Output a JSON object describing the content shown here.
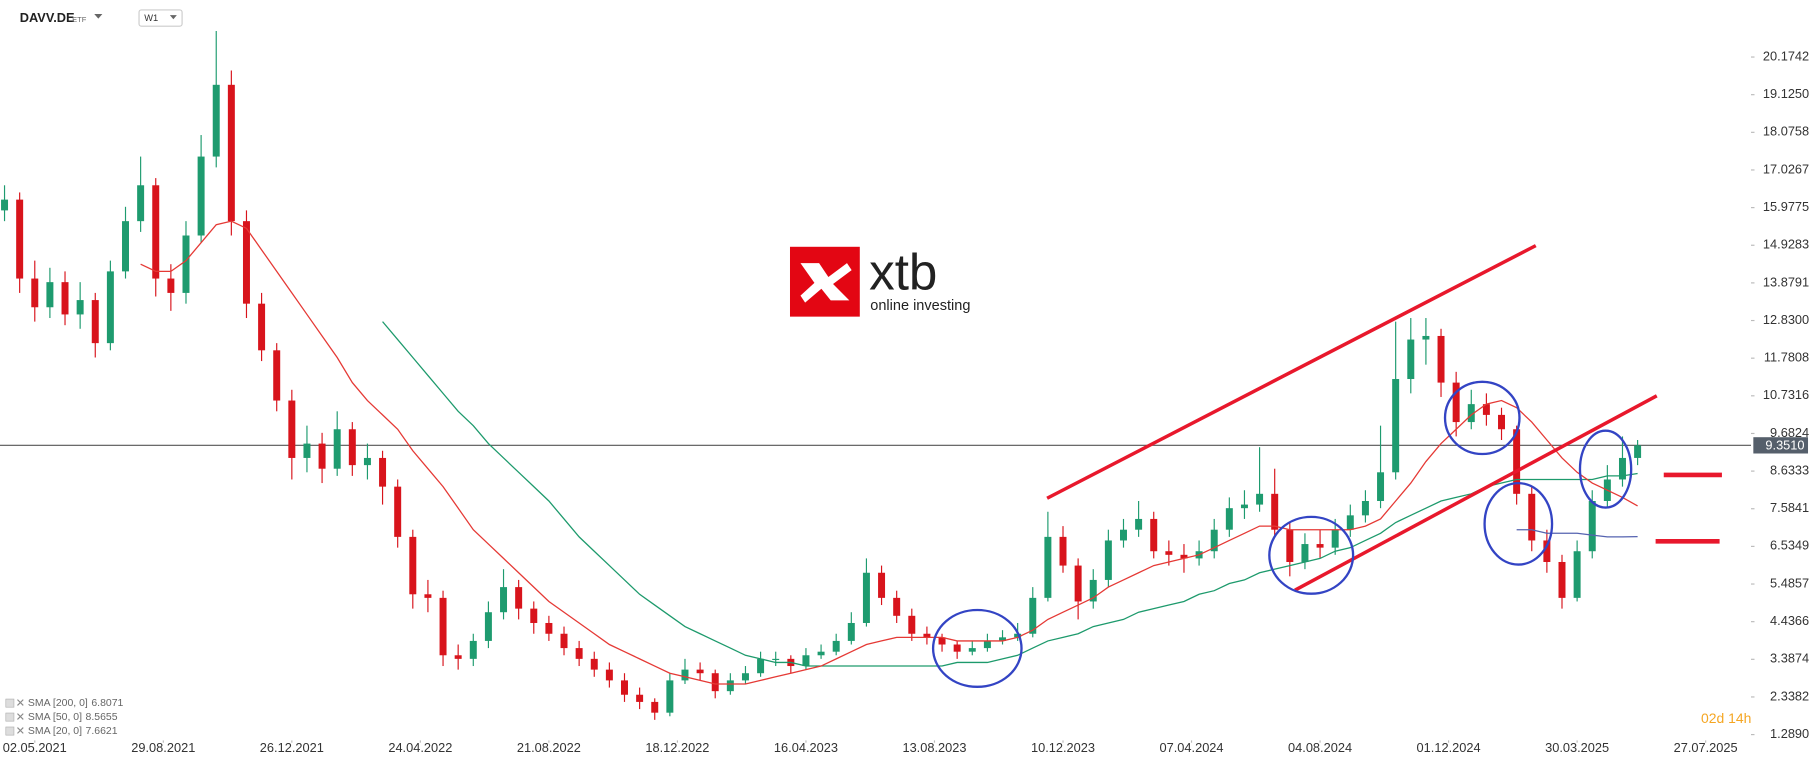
{
  "header": {
    "symbol": "DAVV.DE",
    "asset_type": "ETF",
    "timeframe": "W1"
  },
  "watermark": {
    "brand": "xtb",
    "tagline": "online investing"
  },
  "countdown": "02d 14h",
  "chart_data": {
    "type": "candlestick",
    "up_color": "#1e9b6f",
    "down_color": "#d8141c",
    "open": [
      15.9,
      16.2,
      14.0,
      13.2,
      13.9,
      13.0,
      13.4,
      12.2,
      14.2,
      15.6,
      16.6,
      14.0,
      13.6,
      15.2,
      17.4,
      19.4,
      15.6,
      13.3,
      12.0,
      10.6,
      9.0,
      9.4,
      8.7,
      9.8,
      8.8,
      9.0,
      8.2,
      6.8,
      5.2,
      5.1,
      3.5,
      3.4,
      3.9,
      4.7,
      5.4,
      4.8,
      4.4,
      4.1,
      3.7,
      3.4,
      3.1,
      2.8,
      2.4,
      2.2,
      1.9,
      2.8,
      3.1,
      3.0,
      2.5,
      2.8,
      3.0,
      3.4,
      3.4,
      3.2,
      3.5,
      3.6,
      3.9,
      4.4,
      5.8,
      5.1,
      4.6,
      4.1,
      4.0,
      3.8,
      3.6,
      3.7,
      3.9,
      4.0,
      4.1,
      5.1,
      6.8,
      6.0,
      5.0,
      5.6,
      6.7,
      7.0,
      7.3,
      6.4,
      6.3,
      6.2,
      6.4,
      7.0,
      7.6,
      7.7,
      8.0,
      7.0,
      6.1,
      6.6,
      6.5,
      7.0,
      7.4,
      7.8,
      8.6,
      11.2,
      12.3,
      12.4,
      11.1,
      10.0,
      10.5,
      10.2,
      9.8,
      8.0,
      6.7,
      6.1,
      5.1,
      6.4,
      7.8,
      8.4,
      9.0
    ],
    "high": [
      16.6,
      16.4,
      14.5,
      14.3,
      14.2,
      13.9,
      13.6,
      14.5,
      16.0,
      17.4,
      16.8,
      14.4,
      15.6,
      18.0,
      20.9,
      19.8,
      15.9,
      13.6,
      12.2,
      10.9,
      9.9,
      9.7,
      10.3,
      10.0,
      9.4,
      9.2,
      8.4,
      7.0,
      5.6,
      5.3,
      3.8,
      4.1,
      5.0,
      5.9,
      5.6,
      5.0,
      4.6,
      4.3,
      3.9,
      3.6,
      3.3,
      3.0,
      2.6,
      2.3,
      3.0,
      3.4,
      3.3,
      3.1,
      3.0,
      3.2,
      3.6,
      3.6,
      3.5,
      3.7,
      3.8,
      4.1,
      4.7,
      6.2,
      6.0,
      5.3,
      4.8,
      4.3,
      4.1,
      3.9,
      3.9,
      4.1,
      4.2,
      4.4,
      5.4,
      7.5,
      7.1,
      6.2,
      5.9,
      7.0,
      7.3,
      7.8,
      7.5,
      6.7,
      6.6,
      6.7,
      7.3,
      7.9,
      8.1,
      9.3,
      8.7,
      7.2,
      6.9,
      7.0,
      7.3,
      7.7,
      8.1,
      9.9,
      12.8,
      12.9,
      12.9,
      12.6,
      11.4,
      10.9,
      10.8,
      10.4,
      9.9,
      8.2,
      7.0,
      6.3,
      6.7,
      8.1,
      8.8,
      9.6,
      9.5
    ],
    "low": [
      15.6,
      13.6,
      12.8,
      12.9,
      12.7,
      12.6,
      11.8,
      12.0,
      14.0,
      15.3,
      13.5,
      13.1,
      13.3,
      15.0,
      17.1,
      15.2,
      12.9,
      11.7,
      10.3,
      8.4,
      8.6,
      8.3,
      8.5,
      8.5,
      8.4,
      7.7,
      6.5,
      4.8,
      4.7,
      3.2,
      3.1,
      3.2,
      3.7,
      4.5,
      4.5,
      4.1,
      3.9,
      3.5,
      3.2,
      2.9,
      2.6,
      2.2,
      2.0,
      1.7,
      1.8,
      2.7,
      2.8,
      2.3,
      2.4,
      2.7,
      2.9,
      3.2,
      3.0,
      3.1,
      3.4,
      3.5,
      3.8,
      4.3,
      4.9,
      4.4,
      3.9,
      3.8,
      3.6,
      3.4,
      3.5,
      3.6,
      3.8,
      3.9,
      4.0,
      5.0,
      5.8,
      4.5,
      4.8,
      5.4,
      6.5,
      6.8,
      6.2,
      6.0,
      5.8,
      6.0,
      6.2,
      6.8,
      7.3,
      7.5,
      6.8,
      5.7,
      5.9,
      6.2,
      6.3,
      6.8,
      7.2,
      7.6,
      8.4,
      10.8,
      11.6,
      10.7,
      9.6,
      9.8,
      9.9,
      9.5,
      7.7,
      6.4,
      5.8,
      4.8,
      5.0,
      6.2,
      7.6,
      8.2,
      8.8
    ],
    "close": [
      16.2,
      14.0,
      13.2,
      13.9,
      13.0,
      13.4,
      12.2,
      14.2,
      15.6,
      16.6,
      14.0,
      13.6,
      15.2,
      17.4,
      19.4,
      15.6,
      13.3,
      12.0,
      10.6,
      9.0,
      9.4,
      8.7,
      9.8,
      8.8,
      9.0,
      8.2,
      6.8,
      5.2,
      5.1,
      3.5,
      3.4,
      3.9,
      4.7,
      5.4,
      4.8,
      4.4,
      4.1,
      3.7,
      3.4,
      3.1,
      2.8,
      2.4,
      2.2,
      1.9,
      2.8,
      3.1,
      3.0,
      2.5,
      2.8,
      3.0,
      3.4,
      3.4,
      3.2,
      3.5,
      3.6,
      3.9,
      4.4,
      5.8,
      5.1,
      4.6,
      4.1,
      4.0,
      3.8,
      3.6,
      3.7,
      3.9,
      4.0,
      4.1,
      5.1,
      6.8,
      6.0,
      5.0,
      5.6,
      6.7,
      7.0,
      7.3,
      6.4,
      6.3,
      6.2,
      6.4,
      7.0,
      7.6,
      7.7,
      8.0,
      7.0,
      6.1,
      6.6,
      6.5,
      7.0,
      7.4,
      7.8,
      8.6,
      11.2,
      12.3,
      12.4,
      11.1,
      10.0,
      10.5,
      10.2,
      9.8,
      8.0,
      6.7,
      6.1,
      5.1,
      6.4,
      7.8,
      8.4,
      9.0,
      9.351
    ],
    "series": [
      {
        "name": "SMA [200, 0]",
        "color": "#5563b0",
        "values": [
          null,
          null,
          null,
          null,
          null,
          null,
          null,
          null,
          null,
          null,
          null,
          null,
          null,
          null,
          null,
          null,
          null,
          null,
          null,
          null,
          null,
          null,
          null,
          null,
          null,
          null,
          null,
          null,
          null,
          null,
          null,
          null,
          null,
          null,
          null,
          null,
          null,
          null,
          null,
          null,
          null,
          null,
          null,
          null,
          null,
          null,
          null,
          null,
          null,
          null,
          null,
          null,
          null,
          null,
          null,
          null,
          null,
          null,
          null,
          null,
          null,
          null,
          null,
          null,
          null,
          null,
          null,
          null,
          null,
          null,
          null,
          null,
          null,
          null,
          null,
          null,
          null,
          null,
          null,
          null,
          null,
          null,
          null,
          null,
          null,
          null,
          null,
          null,
          null,
          null,
          null,
          null,
          null,
          null,
          null,
          null,
          null,
          null,
          null,
          null,
          7.0,
          7.0,
          6.9,
          6.9,
          6.9,
          6.85,
          6.8,
          6.8,
          6.8071
        ]
      },
      {
        "name": "SMA [50, 0]",
        "color": "#1d9a6c",
        "values": [
          null,
          null,
          null,
          null,
          null,
          null,
          null,
          null,
          null,
          null,
          null,
          null,
          null,
          null,
          null,
          null,
          null,
          null,
          null,
          null,
          null,
          null,
          null,
          null,
          null,
          12.8,
          12.3,
          11.8,
          11.3,
          10.8,
          10.3,
          9.9,
          9.4,
          9.0,
          8.6,
          8.2,
          7.8,
          7.3,
          6.8,
          6.4,
          6.0,
          5.6,
          5.2,
          4.9,
          4.6,
          4.3,
          4.1,
          3.9,
          3.7,
          3.5,
          3.4,
          3.3,
          3.3,
          3.2,
          3.2,
          3.2,
          3.2,
          3.2,
          3.2,
          3.2,
          3.2,
          3.2,
          3.2,
          3.3,
          3.3,
          3.3,
          3.4,
          3.5,
          3.7,
          3.9,
          4.0,
          4.1,
          4.3,
          4.4,
          4.5,
          4.7,
          4.8,
          4.9,
          5.0,
          5.2,
          5.3,
          5.5,
          5.6,
          5.8,
          5.9,
          6.0,
          6.1,
          6.2,
          6.4,
          6.5,
          6.7,
          6.9,
          7.2,
          7.4,
          7.6,
          7.8,
          7.9,
          8.0,
          8.2,
          8.3,
          8.4,
          8.4,
          8.4,
          8.4,
          8.4,
          8.4,
          8.5,
          8.5,
          8.5655
        ]
      },
      {
        "name": "SMA [20, 0]",
        "color": "#e53935",
        "values": [
          null,
          null,
          null,
          null,
          null,
          null,
          null,
          null,
          null,
          14.4,
          14.2,
          14.2,
          14.5,
          15.0,
          15.5,
          15.6,
          15.4,
          14.8,
          14.2,
          13.6,
          13.0,
          12.4,
          11.8,
          11.1,
          10.6,
          10.2,
          9.8,
          9.2,
          8.7,
          8.2,
          7.6,
          7.0,
          6.6,
          6.2,
          5.8,
          5.4,
          5.0,
          4.7,
          4.4,
          4.1,
          3.8,
          3.6,
          3.4,
          3.2,
          3.0,
          2.9,
          2.8,
          2.7,
          2.7,
          2.7,
          2.8,
          2.9,
          3.0,
          3.1,
          3.2,
          3.4,
          3.6,
          3.8,
          3.9,
          4.0,
          4.0,
          4.0,
          4.0,
          3.9,
          3.9,
          3.9,
          3.9,
          4.0,
          4.2,
          4.5,
          4.7,
          4.9,
          5.1,
          5.4,
          5.6,
          5.8,
          6.0,
          6.1,
          6.2,
          6.3,
          6.5,
          6.7,
          6.9,
          7.1,
          7.1,
          7.0,
          7.0,
          7.0,
          7.0,
          7.0,
          7.1,
          7.3,
          7.8,
          8.3,
          8.9,
          9.4,
          9.8,
          10.2,
          10.5,
          10.6,
          10.4,
          10.0,
          9.5,
          9.0,
          8.6,
          8.3,
          8.1,
          7.9,
          7.6621
        ]
      }
    ],
    "last_price": {
      "value": 9.351,
      "label": "9.3510"
    },
    "xlim": [
      -0.3,
      115.5
    ],
    "ylim": [
      1.128,
      21.764
    ],
    "yticks": [
      20.1742,
      {
        "value": 19.125,
        "label": "19.1250"
      },
      18.0758,
      17.0267,
      15.9775,
      14.9283,
      13.8791,
      {
        "value": 12.83,
        "label": "12.8300"
      },
      11.7808,
      10.7316,
      9.6824,
      8.6333,
      7.5841,
      6.5349,
      5.4857,
      4.4366,
      3.3874,
      2.3382,
      {
        "value": 1.289,
        "label": "1.2890"
      }
    ],
    "xticks": [
      {
        "value": 2,
        "label": "02.05.2021"
      },
      {
        "value": 10.5,
        "label": "29.08.2021"
      },
      {
        "value": 19,
        "label": "26.12.2021"
      },
      {
        "value": 27.5,
        "label": "24.04.2022"
      },
      {
        "value": 36,
        "label": "21.08.2022"
      },
      {
        "value": 44.5,
        "label": "18.12.2022"
      },
      {
        "value": 53,
        "label": "16.04.2023"
      },
      {
        "value": 61.5,
        "label": "13.08.2023"
      },
      {
        "value": 70,
        "label": "10.12.2023"
      },
      {
        "value": 78.5,
        "label": "07.04.2024"
      },
      {
        "value": 87,
        "label": "04.08.2024"
      },
      {
        "value": 95.5,
        "label": "01.12.2024"
      },
      {
        "value": 104,
        "label": "30.03.2025"
      },
      {
        "value": 112.5,
        "label": "27.07.2025"
      }
    ],
    "grid": false
  }
}
